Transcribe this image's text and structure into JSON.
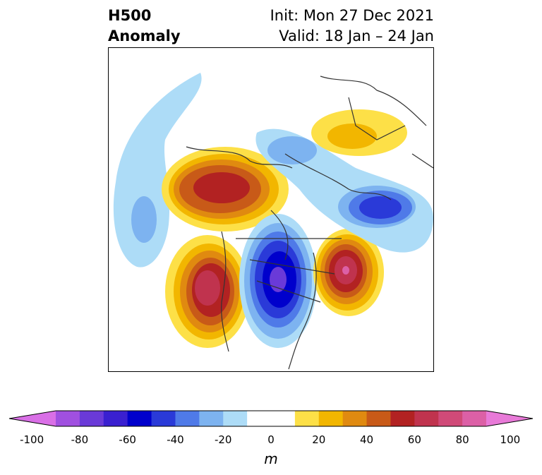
{
  "title": {
    "variable": "H500",
    "type": "Anomaly",
    "init": "Init: Mon 27 Dec 2021",
    "valid": "Valid: 18 Jan – 24 Jan"
  },
  "colorbar": {
    "units": "m",
    "tick_labels": [
      "-100",
      "-80",
      "-60",
      "-40",
      "-20",
      "0",
      "20",
      "40",
      "60",
      "80",
      "100"
    ],
    "colors": [
      "#d96fe6",
      "#a050e0",
      "#6a3ad8",
      "#3a20d0",
      "#0000cc",
      "#2a3ad8",
      "#4f7ae8",
      "#7db3f0",
      "#addcf7",
      "#ffffff",
      "#ffffff",
      "#fde047",
      "#f2b600",
      "#e08a10",
      "#c85a18",
      "#b22222",
      "#c0334e",
      "#d04a78",
      "#dc60a6",
      "#e87ad8"
    ],
    "range": [
      -100,
      100
    ],
    "extend": "both"
  }
}
